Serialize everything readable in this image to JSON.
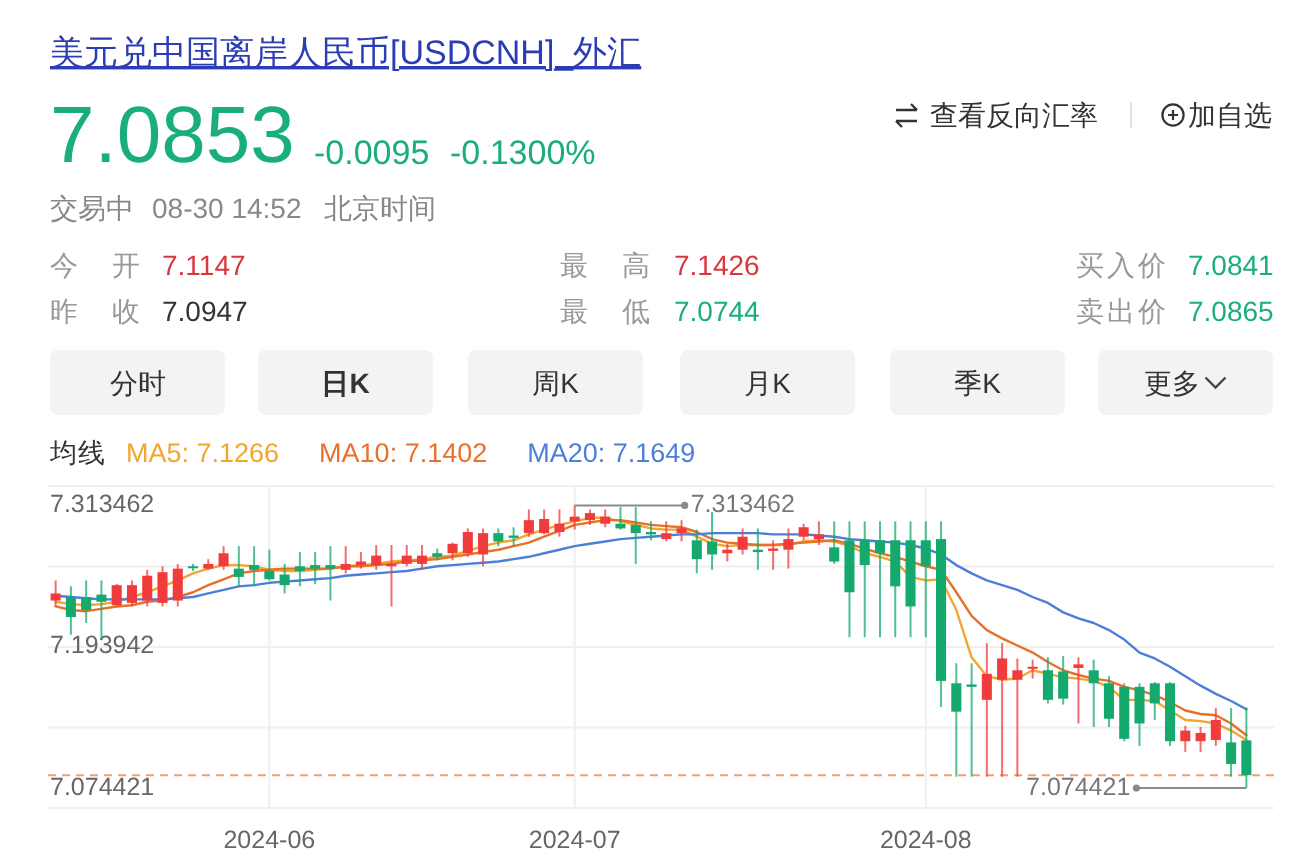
{
  "chart_data": {
    "type": "candlestick",
    "title": "美元兑中国离岸人民币[USDCNH]_外汇",
    "annotations": [
      "7.0853",
      "-0.0095",
      "-0.1300%",
      "查看反向汇率",
      "加自选",
      "交易中",
      "08-30 14:52",
      "北京时间",
      "今开",
      "7.1147",
      "最高",
      "7.1426",
      "买入价",
      "7.0841",
      "昨收",
      "7.0947",
      "最低",
      "7.0744",
      "卖出价",
      "7.0865",
      "分时",
      "日K",
      "周K",
      "月K",
      "季K",
      "更多",
      {
        "text": "7.313462",
        "x": "2024-07",
        "y": 7.313462
      },
      "7.074421"
    ],
    "categories": [
      null,
      null,
      null,
      null,
      null,
      null,
      null,
      null,
      null,
      null,
      null,
      null,
      null,
      null,
      "2024-06",
      null,
      null,
      null,
      null,
      null,
      null,
      null,
      null,
      null,
      null,
      null,
      null,
      null,
      null,
      null,
      null,
      null,
      null,
      null,
      "2024-07",
      null,
      null,
      null,
      null,
      null,
      null,
      null,
      null,
      null,
      null,
      null,
      null,
      null,
      null,
      null,
      null,
      null,
      null,
      null,
      null,
      null,
      null,
      "2024-08",
      null,
      null,
      null,
      null,
      null,
      null,
      null,
      null,
      null,
      null,
      null,
      null,
      null,
      null,
      null,
      null,
      null,
      null,
      null,
      null,
      null
    ],
    "ohlc": [
      [
        7.233,
        7.25,
        7.228,
        7.239
      ],
      [
        7.236,
        7.245,
        7.204,
        7.219
      ],
      [
        7.236,
        7.25,
        7.214,
        7.225
      ],
      [
        7.238,
        7.25,
        7.2,
        7.232
      ],
      [
        7.229,
        7.247,
        7.228,
        7.246
      ],
      [
        7.231,
        7.25,
        7.228,
        7.246
      ],
      [
        7.233,
        7.259,
        7.228,
        7.254
      ],
      [
        7.231,
        7.262,
        7.228,
        7.257
      ],
      [
        7.233,
        7.264,
        7.228,
        7.26
      ],
      [
        7.262,
        7.264,
        7.258,
        7.261
      ],
      [
        7.26,
        7.268,
        7.259,
        7.264
      ],
      [
        7.262,
        7.279,
        7.259,
        7.273
      ],
      [
        7.26,
        7.279,
        7.245,
        7.253
      ],
      [
        7.263,
        7.279,
        7.245,
        7.259
      ],
      [
        7.258,
        7.276,
        7.25,
        7.251
      ],
      [
        7.255,
        7.264,
        7.239,
        7.246
      ],
      [
        7.262,
        7.274,
        7.245,
        7.258
      ],
      [
        7.263,
        7.274,
        7.247,
        7.26
      ],
      [
        7.263,
        7.279,
        7.233,
        7.26
      ],
      [
        7.259,
        7.279,
        7.256,
        7.264
      ],
      [
        7.263,
        7.274,
        7.26,
        7.266
      ],
      [
        7.263,
        7.28,
        7.259,
        7.271
      ],
      [
        7.262,
        7.28,
        7.228,
        7.264
      ],
      [
        7.264,
        7.28,
        7.262,
        7.271
      ],
      [
        7.264,
        7.28,
        7.259,
        7.271
      ],
      [
        7.273,
        7.277,
        7.267,
        7.27
      ],
      [
        7.273,
        7.282,
        7.267,
        7.281
      ],
      [
        7.273,
        7.294,
        7.27,
        7.291
      ],
      [
        7.272,
        7.294,
        7.262,
        7.29
      ],
      [
        7.29,
        7.294,
        7.279,
        7.283
      ],
      [
        7.288,
        7.295,
        7.279,
        7.286
      ],
      [
        7.29,
        7.31,
        7.287,
        7.301
      ],
      [
        7.29,
        7.31,
        7.289,
        7.302
      ],
      [
        7.291,
        7.31,
        7.287,
        7.298
      ],
      [
        7.3,
        7.313462,
        7.293,
        7.304
      ],
      [
        7.301,
        7.31,
        7.297,
        7.307
      ],
      [
        7.298,
        7.31,
        7.295,
        7.304
      ],
      [
        7.298,
        7.312,
        7.293,
        7.294
      ],
      [
        7.297,
        7.312,
        7.264,
        7.29
      ],
      [
        7.291,
        7.3,
        7.284,
        7.289
      ],
      [
        7.285,
        7.3,
        7.283,
        7.29
      ],
      [
        7.29,
        7.301,
        7.283,
        7.294
      ],
      [
        7.284,
        7.293,
        7.256,
        7.268
      ],
      [
        7.283,
        7.308,
        7.259,
        7.272
      ],
      [
        7.273,
        7.281,
        7.266,
        7.276
      ],
      [
        7.276,
        7.294,
        7.272,
        7.287
      ],
      [
        7.276,
        7.294,
        7.259,
        7.274
      ],
      [
        7.275,
        7.284,
        7.259,
        7.277
      ],
      [
        7.276,
        7.294,
        7.26,
        7.285
      ],
      [
        7.287,
        7.298,
        7.284,
        7.295
      ],
      [
        7.285,
        7.3,
        7.28,
        7.289
      ],
      [
        7.278,
        7.3,
        7.264,
        7.266
      ],
      [
        7.284,
        7.3,
        7.202,
        7.24
      ],
      [
        7.284,
        7.3,
        7.202,
        7.263
      ],
      [
        7.284,
        7.3,
        7.202,
        7.273
      ],
      [
        7.284,
        7.3,
        7.202,
        7.245
      ],
      [
        7.284,
        7.3,
        7.202,
        7.228
      ],
      [
        7.284,
        7.3,
        7.202,
        7.262
      ],
      [
        7.285,
        7.3,
        7.143,
        7.165
      ],
      [
        7.163,
        7.18,
        7.084,
        7.139
      ],
      [
        7.162,
        7.18,
        7.084,
        7.16
      ],
      [
        7.149,
        7.197,
        7.084,
        7.171
      ],
      [
        7.166,
        7.197,
        7.084,
        7.184
      ],
      [
        7.166,
        7.184,
        7.084,
        7.174
      ],
      [
        7.176,
        7.183,
        7.167,
        7.177
      ],
      [
        7.174,
        7.185,
        7.146,
        7.149
      ],
      [
        7.173,
        7.186,
        7.145,
        7.15
      ],
      [
        7.176,
        7.185,
        7.129,
        7.179
      ],
      [
        7.174,
        7.183,
        7.126,
        7.163
      ],
      [
        7.163,
        7.169,
        7.126,
        7.133
      ],
      [
        7.16,
        7.163,
        7.114,
        7.116
      ],
      [
        7.16,
        7.163,
        7.11,
        7.129
      ],
      [
        7.163,
        7.164,
        7.132,
        7.146
      ],
      [
        7.163,
        7.164,
        7.11,
        7.114
      ],
      [
        7.114,
        7.127,
        7.105,
        7.123
      ],
      [
        7.114,
        7.126,
        7.105,
        7.121
      ],
      [
        7.115,
        7.142,
        7.11,
        7.132
      ],
      [
        7.113,
        7.142,
        7.084,
        7.0947
      ],
      [
        7.1147,
        7.1426,
        7.074421,
        7.0853
      ]
    ],
    "series": [
      {
        "name": "MA5: 7.1266",
        "type": "line",
        "color": "#f3a52c",
        "values": [
          7.232,
          7.23,
          7.229,
          7.23,
          7.232,
          7.236,
          7.24,
          7.245,
          7.25,
          7.256,
          7.26,
          7.263,
          7.263,
          7.262,
          7.259,
          7.258,
          7.258,
          7.259,
          7.26,
          7.262,
          7.263,
          7.264,
          7.266,
          7.267,
          7.268,
          7.27,
          7.271,
          7.275,
          7.279,
          7.282,
          7.284,
          7.289,
          7.293,
          7.297,
          7.3,
          7.303,
          7.303,
          7.3,
          7.297,
          7.294,
          7.293,
          7.293,
          7.287,
          7.281,
          7.279,
          7.28,
          7.28,
          7.28,
          7.28,
          7.283,
          7.284,
          7.283,
          7.279,
          7.273,
          7.27,
          7.266,
          7.253,
          7.25,
          7.251,
          7.225,
          7.185,
          7.169,
          7.166,
          7.167,
          7.174,
          7.171,
          7.168,
          7.167,
          7.165,
          7.16,
          7.149,
          7.149,
          7.148,
          7.14,
          7.132,
          7.131,
          7.129,
          7.123,
          7.115
        ]
      },
      {
        "name": "MA10: 7.1402",
        "type": "line",
        "color": "#e8702a",
        "values": [
          7.228,
          7.225,
          7.224,
          7.226,
          7.228,
          7.229,
          7.232,
          7.233,
          7.236,
          7.24,
          7.246,
          7.251,
          7.256,
          7.258,
          7.259,
          7.26,
          7.26,
          7.26,
          7.26,
          7.262,
          7.262,
          7.263,
          7.264,
          7.266,
          7.267,
          7.268,
          7.27,
          7.272,
          7.274,
          7.276,
          7.279,
          7.282,
          7.287,
          7.292,
          7.297,
          7.299,
          7.301,
          7.301,
          7.299,
          7.297,
          7.296,
          7.295,
          7.291,
          7.285,
          7.282,
          7.281,
          7.28,
          7.28,
          7.281,
          7.282,
          7.283,
          7.284,
          7.281,
          7.277,
          7.273,
          7.27,
          7.266,
          7.262,
          7.259,
          7.24,
          7.22,
          7.208,
          7.201,
          7.195,
          7.189,
          7.181,
          7.174,
          7.17,
          7.167,
          7.165,
          7.16,
          7.157,
          7.153,
          7.147,
          7.14,
          7.137,
          7.136,
          7.129,
          7.119
        ]
      },
      {
        "name": "MA20: 7.1649",
        "type": "line",
        "color": "#4d7ed8",
        "values": [
          7.237,
          7.236,
          7.235,
          7.234,
          7.234,
          7.234,
          7.234,
          7.234,
          7.235,
          7.236,
          7.239,
          7.242,
          7.245,
          7.246,
          7.248,
          7.249,
          7.25,
          7.251,
          7.252,
          7.254,
          7.255,
          7.256,
          7.257,
          7.258,
          7.26,
          7.262,
          7.263,
          7.264,
          7.265,
          7.266,
          7.268,
          7.27,
          7.273,
          7.276,
          7.279,
          7.281,
          7.283,
          7.285,
          7.286,
          7.287,
          7.288,
          7.289,
          7.289,
          7.29,
          7.29,
          7.29,
          7.29,
          7.289,
          7.289,
          7.289,
          7.288,
          7.287,
          7.285,
          7.284,
          7.283,
          7.282,
          7.28,
          7.277,
          7.272,
          7.263,
          7.256,
          7.25,
          7.246,
          7.242,
          7.236,
          7.231,
          7.223,
          7.218,
          7.214,
          7.208,
          7.2,
          7.189,
          7.184,
          7.177,
          7.169,
          7.161,
          7.154,
          7.148,
          7.141
        ]
      }
    ],
    "legend": "top left",
    "legend_title": "均线",
    "ylim": [
      7.0575,
      7.3299
    ],
    "yticks": [
      {
        "value": 7.0575,
        "label": null
      },
      7.074421,
      {
        "value": 7.1256,
        "label": null
      },
      {
        "value": 7.1937,
        "label": null
      },
      7.193942,
      {
        "value": 7.2618,
        "label": null
      },
      7.313462,
      {
        "value": 7.3299,
        "label": null
      }
    ],
    "grid": true,
    "ref_lines": [
      {
        "axis": "y",
        "value": 7.0853,
        "color": "#f2a06a",
        "line_style": "dashed"
      }
    ]
  }
}
